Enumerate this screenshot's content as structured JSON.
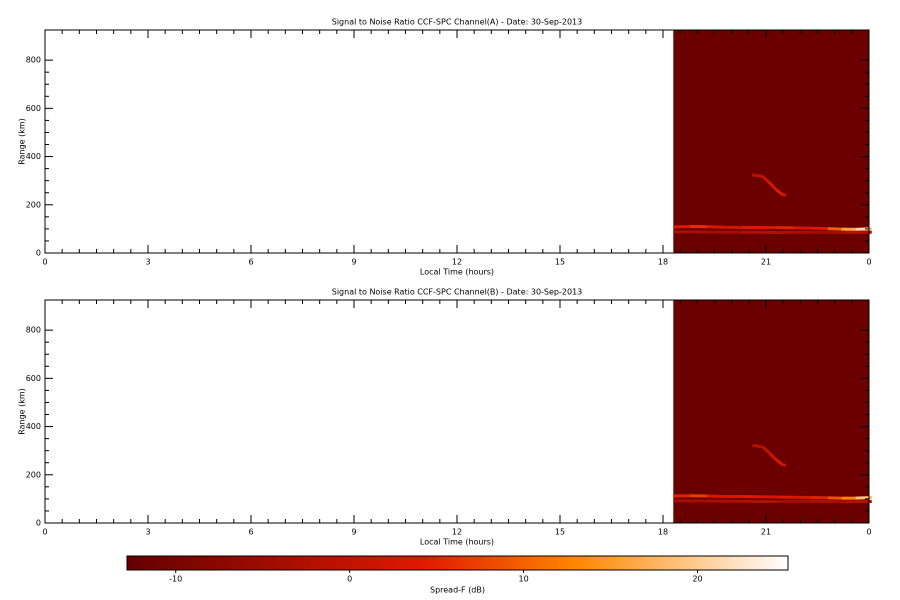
{
  "chart_data": [
    {
      "type": "heatmap",
      "title": "Signal to Noise Ratio CCF-SPC Channel(A) - Date: 30-Sep-2013",
      "xlabel": "Local Time (hours)",
      "ylabel": "Range (km)",
      "xlim": [
        0,
        24
      ],
      "xticks": [
        0,
        3,
        6,
        9,
        12,
        15,
        18,
        21,
        {
          "value": 24,
          "label": "0"
        }
      ],
      "ylim": [
        0,
        925
      ],
      "yticks": [
        0,
        200,
        400,
        600,
        800
      ],
      "data_extent": {
        "x": [
          18.3,
          24
        ],
        "y": [
          0,
          925
        ]
      },
      "background_value": -12,
      "traces": [
        {
          "x": [
            18.3,
            18.8,
            19.3,
            19.8,
            20.3,
            20.8,
            21.3,
            21.8,
            22.3,
            22.8,
            23.2,
            23.6,
            24
          ],
          "y": [
            108,
            110,
            109,
            107,
            106,
            106,
            105,
            104,
            103,
            101,
            99,
            98,
            100
          ],
          "values": [
            4,
            6,
            3,
            2,
            4,
            3,
            5,
            3,
            4,
            10,
            16,
            21,
            18
          ]
        },
        {
          "x": [
            18.3,
            19.3,
            20.3,
            21.3,
            22.3,
            23.3,
            24
          ],
          "y": [
            88,
            87,
            86,
            85,
            86,
            85,
            86
          ],
          "values": [
            -3,
            -4,
            -2,
            -3,
            -4,
            -2,
            -3
          ]
        },
        {
          "x": [
            20.6,
            20.9,
            21.1,
            21.3,
            21.5
          ],
          "y": [
            324,
            318,
            292,
            262,
            240
          ],
          "values": [
            -1,
            1,
            3,
            4,
            2
          ]
        }
      ]
    },
    {
      "type": "heatmap",
      "title": "Signal to Noise Ratio CCF-SPC Channel(B) - Date: 30-Sep-2013",
      "xlabel": "Local Time (hours)",
      "ylabel": "Range (km)",
      "xlim": [
        0,
        24
      ],
      "xticks": [
        0,
        3,
        6,
        9,
        12,
        15,
        18,
        21,
        {
          "value": 24,
          "label": "0"
        }
      ],
      "ylim": [
        0,
        925
      ],
      "yticks": [
        0,
        200,
        400,
        600,
        800
      ],
      "data_extent": {
        "x": [
          18.3,
          24
        ],
        "y": [
          0,
          925
        ]
      },
      "background_value": -12,
      "traces": [
        {
          "x": [
            18.3,
            18.8,
            19.3,
            19.8,
            20.3,
            20.8,
            21.3,
            21.8,
            22.3,
            22.8,
            23.2,
            23.6,
            24
          ],
          "y": [
            112,
            113,
            112,
            110,
            110,
            109,
            108,
            107,
            106,
            104,
            103,
            103,
            105
          ],
          "values": [
            5,
            7,
            3,
            3,
            4,
            3,
            4,
            3,
            5,
            9,
            13,
            19,
            17
          ]
        },
        {
          "x": [
            18.3,
            19.3,
            20.3,
            21.3,
            22.3,
            23.3,
            24
          ],
          "y": [
            92,
            91,
            90,
            89,
            90,
            88,
            89
          ],
          "values": [
            -4,
            -3,
            -2,
            -4,
            -3,
            -2,
            -3
          ]
        },
        {
          "x": [
            20.6,
            20.9,
            21.1,
            21.3,
            21.5
          ],
          "y": [
            322,
            316,
            290,
            262,
            240
          ],
          "values": [
            -2,
            0,
            2,
            3,
            1
          ]
        }
      ]
    }
  ],
  "colorbar": {
    "label": "Spread-F (dB)",
    "lim": [
      -12.8,
      25.2
    ],
    "ticks": [
      -10,
      0,
      10,
      20
    ]
  }
}
